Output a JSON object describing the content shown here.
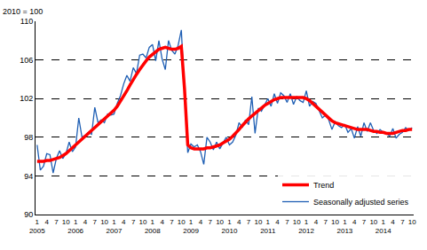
{
  "chart_data": {
    "type": "line",
    "ylabel": "2010 = 100",
    "categories": [
      "1\n2005",
      null,
      null,
      "4",
      null,
      null,
      "7",
      null,
      null,
      "10",
      null,
      null,
      "1\n2006",
      null,
      null,
      "4",
      null,
      null,
      "7",
      null,
      null,
      "10",
      null,
      null,
      "1\n2007",
      null,
      null,
      "4",
      null,
      null,
      "7",
      null,
      null,
      "10",
      null,
      null,
      "1\n2008",
      null,
      null,
      "4",
      null,
      null,
      "7",
      null,
      null,
      "10",
      null,
      null,
      "1\n2009",
      null,
      null,
      "4",
      null,
      null,
      "7",
      null,
      null,
      "10",
      null,
      null,
      "1\n2010",
      null,
      null,
      "4",
      null,
      null,
      "7",
      null,
      null,
      "10",
      null,
      null,
      "1\n2011",
      null,
      null,
      "4",
      null,
      null,
      "7",
      null,
      null,
      "10",
      null,
      null,
      "1\n2012",
      null,
      null,
      "4",
      null,
      null,
      "7",
      null,
      null,
      "10",
      null,
      null,
      "1\n2013",
      null,
      null,
      "4",
      null,
      null,
      "7",
      null,
      null,
      "10",
      null,
      null,
      "1\n2014",
      null,
      null,
      "4",
      null,
      null,
      "7",
      null,
      null,
      "10"
    ],
    "series": [
      {
        "name": "Trend",
        "color": "#ff0000",
        "values": [
          95.5,
          95.5,
          95.5,
          95.6,
          95.6,
          95.7,
          95.8,
          95.9,
          96.1,
          96.3,
          96.6,
          96.9,
          97.2,
          97.5,
          97.8,
          98.1,
          98.4,
          98.7,
          98.9,
          99.2,
          99.5,
          99.8,
          100.1,
          100.4,
          100.8,
          101.2,
          101.7,
          102.2,
          102.8,
          103.4,
          104.0,
          104.5,
          105.0,
          105.5,
          105.9,
          106.3,
          106.6,
          106.9,
          107.1,
          107.2,
          107.3,
          107.2,
          107.1,
          107.1,
          107.2,
          107.4,
          103.0,
          97.2,
          96.9,
          96.8,
          96.8,
          96.8,
          96.8,
          96.9,
          96.9,
          97.0,
          97.1,
          97.2,
          97.4,
          97.6,
          97.8,
          98.1,
          98.4,
          98.8,
          99.2,
          99.6,
          99.9,
          100.2,
          100.5,
          100.8,
          101.1,
          101.3,
          101.5,
          101.7,
          101.9,
          102.0,
          102.1,
          102.1,
          102.1,
          102.1,
          102.1,
          102.1,
          102.1,
          102.1,
          102.0,
          101.8,
          101.5,
          101.2,
          100.9,
          100.5,
          100.2,
          99.9,
          99.7,
          99.5,
          99.4,
          99.3,
          99.2,
          99.1,
          99.0,
          98.9,
          98.8,
          98.8,
          98.8,
          98.8,
          98.7,
          98.6,
          98.6,
          98.5,
          98.5,
          98.4,
          98.4,
          98.4,
          98.5,
          98.6,
          98.7,
          98.7,
          98.8,
          98.8
        ]
      },
      {
        "name": "Seasonally adjusted series",
        "color": "#1f5fb4",
        "values": [
          97.2,
          94.6,
          95.0,
          96.3,
          96.2,
          94.3,
          95.8,
          96.6,
          95.8,
          96.3,
          97.5,
          96.5,
          97.0,
          100.0,
          98.0,
          98.2,
          98.5,
          98.3,
          101.1,
          99.5,
          99.8,
          99.5,
          100.4,
          100.3,
          100.4,
          101.5,
          102.3,
          103.5,
          104.4,
          103.8,
          105.2,
          104.6,
          106.5,
          106.6,
          106.2,
          107.3,
          107.6,
          105.9,
          108.0,
          106.1,
          105.0,
          108.0,
          107.0,
          106.6,
          107.5,
          109.1,
          102.6,
          96.4,
          97.3,
          97.0,
          97.2,
          96.5,
          95.2,
          98.0,
          97.5,
          96.7,
          97.5,
          96.8,
          97.4,
          98.0,
          97.2,
          97.5,
          98.2,
          99.5,
          99.0,
          99.8,
          99.3,
          102.2,
          98.4,
          101.0,
          100.7,
          101.3,
          102.0,
          101.2,
          102.5,
          101.5,
          102.6,
          102.3,
          101.6,
          102.5,
          101.4,
          102.2,
          101.8,
          101.6,
          102.8,
          101.2,
          101.7,
          101.5,
          100.7,
          100.0,
          100.3,
          99.8,
          98.8,
          99.6,
          99.2,
          99.0,
          99.3,
          98.5,
          98.9,
          97.9,
          99.1,
          98.1,
          99.5,
          98.6,
          99.5,
          98.7,
          98.4,
          98.8,
          98.5,
          98.4,
          98.1,
          98.9,
          97.9,
          98.3,
          98.5,
          99.0,
          98.7,
          99.0
        ]
      }
    ],
    "ylim": [
      90,
      110
    ],
    "yticks": [
      90,
      94,
      98,
      102,
      106,
      110
    ],
    "grid": true,
    "legend": "bottom-right"
  }
}
